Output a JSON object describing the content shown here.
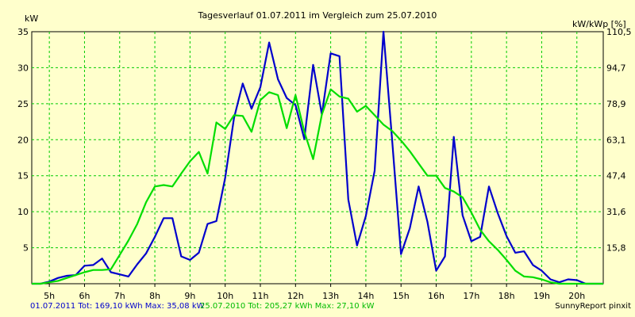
{
  "chart_data": {
    "type": "line",
    "title": "Tagesverlauf 01.07.2011 im Vergleich zum 25.07.2010",
    "ylabel": "kW",
    "y2label": "kW/kWp [%]",
    "ylim": [
      0,
      35
    ],
    "y2lim": [
      0,
      110.5
    ],
    "yticks": [
      5,
      10,
      15,
      20,
      25,
      30,
      35
    ],
    "y2ticks": [
      "15,8",
      "31,6",
      "47,4",
      "63,1",
      "78,9",
      "94,7",
      "110,5"
    ],
    "xlim": [
      4.5,
      20.75
    ],
    "xticks": [
      "5h",
      "6h",
      "7h",
      "8h",
      "9h",
      "10h",
      "11h",
      "12h",
      "13h",
      "14h",
      "15h",
      "16h",
      "17h",
      "18h",
      "19h",
      "20h"
    ],
    "grid": true,
    "series": [
      {
        "name": "01.07.2011",
        "color": "#0000cc",
        "x": [
          4.5,
          4.75,
          5,
          5.25,
          5.5,
          5.75,
          6,
          6.25,
          6.5,
          6.75,
          7,
          7.25,
          7.5,
          7.75,
          8,
          8.25,
          8.5,
          8.75,
          9,
          9.25,
          9.5,
          9.75,
          10,
          10.25,
          10.5,
          10.75,
          11,
          11.25,
          11.5,
          11.75,
          12,
          12.25,
          12.5,
          12.75,
          13,
          13.25,
          13.5,
          13.75,
          14,
          14.25,
          14.5,
          14.75,
          15,
          15.25,
          15.5,
          15.75,
          16,
          16.25,
          16.5,
          16.75,
          17,
          17.25,
          17.5,
          17.75,
          18,
          18.25,
          18.5,
          18.75,
          19,
          19.25,
          19.5,
          19.75,
          20,
          20.25,
          20.5,
          20.75
        ],
        "values": [
          0,
          0,
          0.3,
          0.8,
          1.1,
          1.2,
          2.5,
          2.6,
          3.5,
          1.6,
          1.3,
          1.0,
          2.7,
          4.2,
          6.5,
          9.1,
          9.1,
          3.8,
          3.3,
          4.3,
          8.3,
          8.7,
          14.7,
          23.0,
          27.8,
          24.3,
          27.3,
          33.5,
          28.4,
          25.8,
          24.8,
          20.1,
          30.4,
          23.5,
          32.0,
          31.6,
          11.7,
          5.3,
          9.4,
          15.7,
          35.0,
          19.7,
          4.1,
          7.7,
          13.5,
          8.6,
          1.8,
          3.8,
          20.4,
          9.5,
          5.9,
          6.5,
          13.5,
          9.8,
          6.6,
          4.3,
          4.5,
          2.6,
          1.8,
          0.6,
          0.2,
          0.6,
          0.5,
          0,
          0,
          0
        ]
      },
      {
        "name": "25.07.2010",
        "color": "#00dd00",
        "x": [
          4.5,
          4.75,
          5,
          5.25,
          5.5,
          5.75,
          6,
          6.25,
          6.5,
          6.75,
          7,
          7.25,
          7.5,
          7.75,
          8,
          8.25,
          8.5,
          8.75,
          9,
          9.25,
          9.5,
          9.75,
          10,
          10.25,
          10.5,
          10.75,
          11,
          11.25,
          11.5,
          11.75,
          12,
          12.25,
          12.5,
          12.75,
          13,
          13.25,
          13.5,
          13.75,
          14,
          14.25,
          14.5,
          14.75,
          15,
          15.25,
          15.5,
          15.75,
          16,
          16.25,
          16.5,
          16.75,
          17,
          17.25,
          17.5,
          17.75,
          18,
          18.25,
          18.5,
          18.75,
          19,
          19.25,
          19.5,
          19.75,
          20,
          20.25,
          20.5,
          20.75
        ],
        "values": [
          0,
          0,
          0.2,
          0.4,
          0.8,
          1.2,
          1.6,
          1.9,
          1.9,
          2.0,
          4.0,
          6.0,
          8.3,
          11.3,
          13.5,
          13.7,
          13.5,
          15.3,
          17.0,
          18.3,
          15.3,
          22.4,
          21.5,
          23.4,
          23.3,
          21.1,
          25.5,
          26.6,
          26.2,
          21.6,
          26.2,
          21.1,
          17.3,
          23.5,
          27.0,
          26.0,
          25.7,
          23.9,
          24.7,
          23.4,
          22.1,
          21.2,
          19.9,
          18.4,
          16.7,
          15.0,
          15.0,
          13.3,
          12.8,
          12.0,
          9.9,
          7.5,
          5.9,
          4.7,
          3.3,
          1.8,
          1.0,
          0.9,
          0.6,
          0.2,
          0,
          0,
          0,
          0,
          0,
          0
        ]
      }
    ]
  },
  "footer": {
    "series1_label": "01.07.2011 Tot: 169,10 kWh Max: 35,08 kW",
    "series2_label": "25.07.2010 Tot: 205,27 kWh Max: 27,10 kW",
    "credit": "SunnyReport pinxit"
  }
}
